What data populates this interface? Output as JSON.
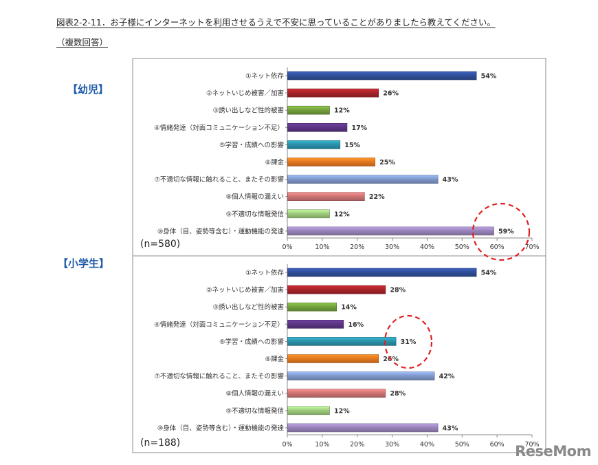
{
  "header": {
    "title": "図表2-2-11．お子様にインターネットを利用させるうえで不安に思っていることがありましたら教えてください。",
    "subtitle": "（複数回答）"
  },
  "watermark": "ReseMom",
  "colors": {
    "navy": "#2f4f9a",
    "red": "#a8242a",
    "green": "#74a23f",
    "purple": "#5c3585",
    "teal": "#2b93ab",
    "orange": "#e6791f",
    "light_blue": "#8199cc",
    "rose": "#cf7474",
    "light_green": "#9fcd7f",
    "lavender": "#9a84bb",
    "circle": "#e02020",
    "group_label": "#1e5ba8"
  },
  "chart_data": [
    {
      "type": "bar",
      "orientation": "horizontal",
      "group_label": "【幼児】",
      "n_label": "(n=580)",
      "categories": [
        "①ネット依存",
        "②ネットいじめ被害／加害",
        "③誘い出しなど性的被害",
        "④情緒発達（対面コミュニケーション不足）",
        "⑤学習・成績への影響",
        "⑥課金",
        "⑦不適切な情報に触れること、またその影響",
        "⑧個人情報の漏えい",
        "⑨不適切な情報発信",
        "⑩身体（目、姿勢等含む）・運動機能の発達"
      ],
      "values": [
        54,
        26,
        12,
        17,
        15,
        25,
        43,
        22,
        12,
        59
      ],
      "value_labels": [
        "54%",
        "26%",
        "12%",
        "17%",
        "15%",
        "25%",
        "43%",
        "22%",
        "12%",
        "59%"
      ],
      "bar_colors": [
        "navy",
        "red",
        "green",
        "purple",
        "teal",
        "orange",
        "light_blue",
        "rose",
        "light_green",
        "lavender"
      ],
      "xlim": [
        0,
        70
      ],
      "xticks": [
        "0%",
        "10%",
        "20%",
        "30%",
        "40%",
        "50%",
        "60%",
        "70%"
      ],
      "highlight_index": 9
    },
    {
      "type": "bar",
      "orientation": "horizontal",
      "group_label": "【小学生】",
      "n_label": "(n=188)",
      "categories": [
        "①ネット依存",
        "②ネットいじめ被害／加害",
        "③誘い出しなど性的被害",
        "④情緒発達（対面コミュニケーション不足）",
        "⑤学習・成績への影響",
        "⑥課金",
        "⑦不適切な情報に触れること、またその影響",
        "⑧個人情報の漏えい",
        "⑨不適切な情報発信",
        "⑩身体（目、姿勢等含む）・運動機能の発達"
      ],
      "values": [
        54,
        28,
        14,
        16,
        31,
        26,
        42,
        28,
        12,
        43
      ],
      "value_labels": [
        "54%",
        "28%",
        "14%",
        "16%",
        "31%",
        "26%",
        "42%",
        "28%",
        "12%",
        "43%"
      ],
      "bar_colors": [
        "navy",
        "red",
        "green",
        "purple",
        "teal",
        "orange",
        "light_blue",
        "rose",
        "light_green",
        "lavender"
      ],
      "xlim": [
        0,
        70
      ],
      "xticks": [
        "0%",
        "10%",
        "20%",
        "30%",
        "40%",
        "50%",
        "60%",
        "70%"
      ],
      "highlight_index": 4
    }
  ]
}
